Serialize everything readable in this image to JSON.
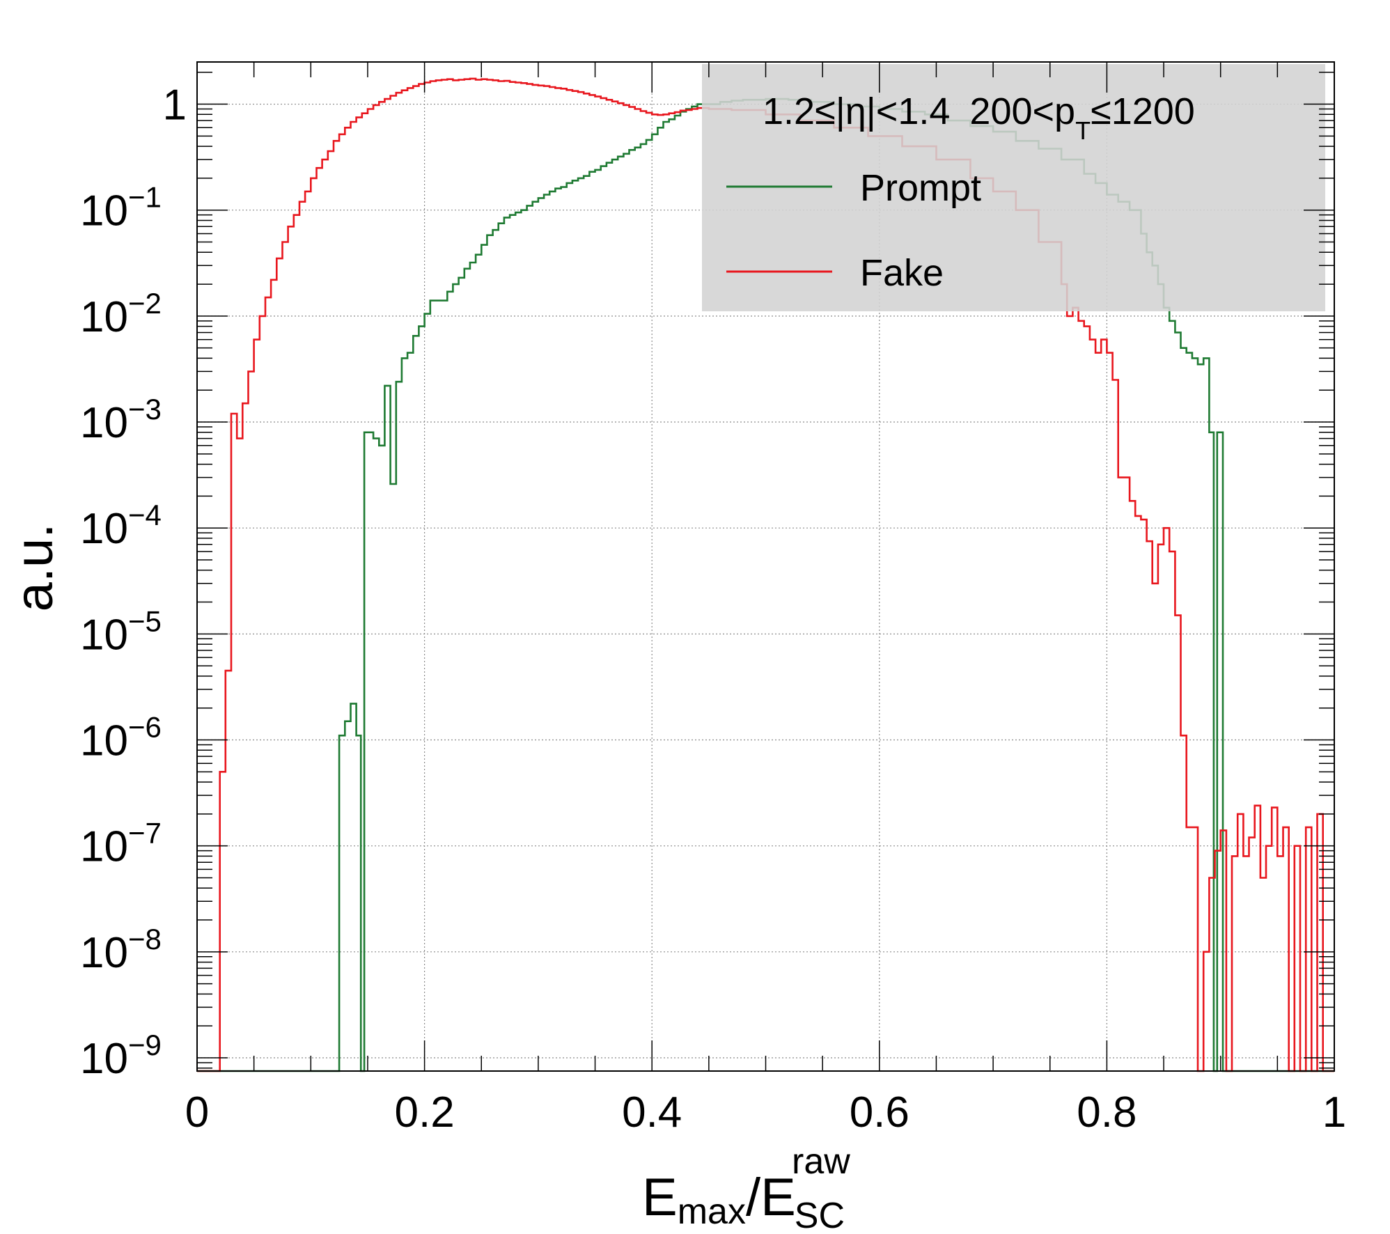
{
  "chart_data": {
    "type": "line",
    "step": true,
    "yscale": "log",
    "xlim": [
      0,
      1
    ],
    "ylim": [
      7.5e-10,
      2.5
    ],
    "grid": true,
    "xlabel": {
      "main": "E",
      "sub": "max",
      "sep": "/",
      "main2": "E",
      "sub2": "SC",
      "sup2": "raw"
    },
    "ylabel": "a.u.",
    "x_ticks": [
      {
        "value": 0,
        "label": "0"
      },
      {
        "value": 0.2,
        "label": "0.2"
      },
      {
        "value": 0.4,
        "label": "0.4"
      },
      {
        "value": 0.6,
        "label": "0.6"
      },
      {
        "value": 0.8,
        "label": "0.8"
      },
      {
        "value": 1,
        "label": "1"
      }
    ],
    "y_ticks": [
      {
        "value": 1,
        "base": "1",
        "exp": ""
      },
      {
        "value": 0.1,
        "base": "10",
        "exp": "−1"
      },
      {
        "value": 0.01,
        "base": "10",
        "exp": "−2"
      },
      {
        "value": 0.001,
        "base": "10",
        "exp": "−3"
      },
      {
        "value": 0.0001,
        "base": "10",
        "exp": "−4"
      },
      {
        "value": 1e-05,
        "base": "10",
        "exp": "−5"
      },
      {
        "value": 1e-06,
        "base": "10",
        "exp": "−6"
      },
      {
        "value": 1e-07,
        "base": "10",
        "exp": "−7"
      },
      {
        "value": 1e-08,
        "base": "10",
        "exp": "−8"
      },
      {
        "value": 1e-09,
        "base": "10",
        "exp": "−9"
      }
    ],
    "legend": {
      "position": "top-right",
      "header": {
        "left": "1.2≤|η|<1.4",
        "mid": "200<p",
        "sub": "T",
        "right": "≤1200"
      }
    },
    "series": [
      {
        "name": "Prompt",
        "color": "#1e7a32",
        "points": [
          [
            0.0,
            0
          ],
          [
            0.125,
            0
          ],
          [
            0.125,
            1.1e-06
          ],
          [
            0.13,
            1.5e-06
          ],
          [
            0.135,
            2.2e-06
          ],
          [
            0.14,
            1.1e-06
          ],
          [
            0.144,
            0
          ],
          [
            0.147,
            0.0008
          ],
          [
            0.155,
            0.0007
          ],
          [
            0.16,
            0.0006
          ],
          [
            0.165,
            0.0022
          ],
          [
            0.17,
            0.00026
          ],
          [
            0.175,
            0.0024
          ],
          [
            0.18,
            0.004
          ],
          [
            0.185,
            0.0045
          ],
          [
            0.19,
            0.0065
          ],
          [
            0.195,
            0.008
          ],
          [
            0.2,
            0.0105
          ],
          [
            0.205,
            0.014
          ],
          [
            0.21,
            0.014
          ],
          [
            0.215,
            0.014
          ],
          [
            0.22,
            0.017
          ],
          [
            0.225,
            0.02
          ],
          [
            0.23,
            0.023
          ],
          [
            0.235,
            0.028
          ],
          [
            0.24,
            0.032
          ],
          [
            0.245,
            0.038
          ],
          [
            0.25,
            0.047
          ],
          [
            0.255,
            0.058
          ],
          [
            0.26,
            0.065
          ],
          [
            0.265,
            0.075
          ],
          [
            0.27,
            0.085
          ],
          [
            0.275,
            0.09
          ],
          [
            0.28,
            0.095
          ],
          [
            0.285,
            0.1
          ],
          [
            0.29,
            0.11
          ],
          [
            0.295,
            0.12
          ],
          [
            0.3,
            0.13
          ],
          [
            0.305,
            0.14
          ],
          [
            0.31,
            0.15
          ],
          [
            0.315,
            0.16
          ],
          [
            0.32,
            0.165
          ],
          [
            0.325,
            0.18
          ],
          [
            0.33,
            0.19
          ],
          [
            0.335,
            0.2
          ],
          [
            0.34,
            0.21
          ],
          [
            0.345,
            0.23
          ],
          [
            0.35,
            0.24
          ],
          [
            0.355,
            0.26
          ],
          [
            0.36,
            0.28
          ],
          [
            0.365,
            0.3
          ],
          [
            0.37,
            0.32
          ],
          [
            0.375,
            0.34
          ],
          [
            0.38,
            0.37
          ],
          [
            0.385,
            0.39
          ],
          [
            0.39,
            0.42
          ],
          [
            0.395,
            0.46
          ],
          [
            0.4,
            0.52
          ],
          [
            0.405,
            0.6
          ],
          [
            0.41,
            0.68
          ],
          [
            0.415,
            0.72
          ],
          [
            0.42,
            0.78
          ],
          [
            0.425,
            0.85
          ],
          [
            0.43,
            0.9
          ],
          [
            0.435,
            0.95
          ],
          [
            0.44,
            1.0
          ],
          [
            0.45,
            1.0
          ],
          [
            0.46,
            1.05
          ],
          [
            0.47,
            1.08
          ],
          [
            0.48,
            1.1
          ],
          [
            0.5,
            1.12
          ],
          [
            0.52,
            1.1
          ],
          [
            0.54,
            1.05
          ],
          [
            0.56,
            1.0
          ],
          [
            0.58,
            0.95
          ],
          [
            0.6,
            0.9
          ],
          [
            0.62,
            0.85
          ],
          [
            0.64,
            0.8
          ],
          [
            0.66,
            0.7
          ],
          [
            0.68,
            0.62
          ],
          [
            0.7,
            0.55
          ],
          [
            0.72,
            0.45
          ],
          [
            0.74,
            0.38
          ],
          [
            0.76,
            0.3
          ],
          [
            0.78,
            0.22
          ],
          [
            0.79,
            0.18
          ],
          [
            0.8,
            0.14
          ],
          [
            0.81,
            0.12
          ],
          [
            0.82,
            0.1
          ],
          [
            0.825,
            0.1
          ],
          [
            0.83,
            0.06
          ],
          [
            0.835,
            0.04
          ],
          [
            0.84,
            0.03
          ],
          [
            0.845,
            0.02
          ],
          [
            0.85,
            0.012
          ],
          [
            0.855,
            0.009
          ],
          [
            0.86,
            0.007
          ],
          [
            0.865,
            0.005
          ],
          [
            0.87,
            0.0045
          ],
          [
            0.875,
            0.004
          ],
          [
            0.88,
            0.0035
          ],
          [
            0.885,
            0.004
          ],
          [
            0.89,
            0.0008
          ],
          [
            0.894,
            0
          ],
          [
            0.897,
            0.0008
          ],
          [
            0.902,
            0
          ],
          [
            1.0,
            0
          ]
        ]
      },
      {
        "name": "Fake",
        "color": "#e8161d",
        "points": [
          [
            0.0,
            0
          ],
          [
            0.02,
            0
          ],
          [
            0.02,
            5e-07
          ],
          [
            0.025,
            4.5e-06
          ],
          [
            0.03,
            0.0012
          ],
          [
            0.035,
            0.0007
          ],
          [
            0.04,
            0.0015
          ],
          [
            0.045,
            0.003
          ],
          [
            0.05,
            0.006
          ],
          [
            0.055,
            0.01
          ],
          [
            0.06,
            0.015
          ],
          [
            0.065,
            0.022
          ],
          [
            0.07,
            0.035
          ],
          [
            0.075,
            0.05
          ],
          [
            0.08,
            0.07
          ],
          [
            0.085,
            0.09
          ],
          [
            0.09,
            0.12
          ],
          [
            0.095,
            0.15
          ],
          [
            0.1,
            0.2
          ],
          [
            0.105,
            0.25
          ],
          [
            0.11,
            0.3
          ],
          [
            0.115,
            0.36
          ],
          [
            0.12,
            0.45
          ],
          [
            0.125,
            0.52
          ],
          [
            0.13,
            0.6
          ],
          [
            0.135,
            0.68
          ],
          [
            0.14,
            0.75
          ],
          [
            0.145,
            0.82
          ],
          [
            0.15,
            0.9
          ],
          [
            0.155,
            0.98
          ],
          [
            0.16,
            1.05
          ],
          [
            0.165,
            1.12
          ],
          [
            0.17,
            1.2
          ],
          [
            0.175,
            1.28
          ],
          [
            0.18,
            1.35
          ],
          [
            0.185,
            1.42
          ],
          [
            0.19,
            1.48
          ],
          [
            0.195,
            1.55
          ],
          [
            0.2,
            1.6
          ],
          [
            0.205,
            1.65
          ],
          [
            0.21,
            1.68
          ],
          [
            0.215,
            1.7
          ],
          [
            0.22,
            1.72
          ],
          [
            0.225,
            1.68
          ],
          [
            0.23,
            1.7
          ],
          [
            0.235,
            1.72
          ],
          [
            0.24,
            1.74
          ],
          [
            0.245,
            1.7
          ],
          [
            0.25,
            1.72
          ],
          [
            0.255,
            1.7
          ],
          [
            0.26,
            1.68
          ],
          [
            0.265,
            1.65
          ],
          [
            0.27,
            1.66
          ],
          [
            0.275,
            1.62
          ],
          [
            0.28,
            1.6
          ],
          [
            0.285,
            1.58
          ],
          [
            0.29,
            1.55
          ],
          [
            0.295,
            1.52
          ],
          [
            0.3,
            1.5
          ],
          [
            0.305,
            1.48
          ],
          [
            0.31,
            1.45
          ],
          [
            0.315,
            1.42
          ],
          [
            0.32,
            1.4
          ],
          [
            0.325,
            1.36
          ],
          [
            0.33,
            1.33
          ],
          [
            0.335,
            1.3
          ],
          [
            0.34,
            1.26
          ],
          [
            0.345,
            1.22
          ],
          [
            0.35,
            1.18
          ],
          [
            0.355,
            1.14
          ],
          [
            0.36,
            1.1
          ],
          [
            0.365,
            1.06
          ],
          [
            0.37,
            1.02
          ],
          [
            0.375,
            0.98
          ],
          [
            0.38,
            0.94
          ],
          [
            0.385,
            0.9
          ],
          [
            0.39,
            0.86
          ],
          [
            0.395,
            0.83
          ],
          [
            0.4,
            0.8
          ],
          [
            0.405,
            0.79
          ],
          [
            0.41,
            0.8
          ],
          [
            0.415,
            0.82
          ],
          [
            0.42,
            0.84
          ],
          [
            0.425,
            0.87
          ],
          [
            0.43,
            0.88
          ],
          [
            0.435,
            0.9
          ],
          [
            0.44,
            0.92
          ],
          [
            0.45,
            0.9
          ],
          [
            0.47,
            0.88
          ],
          [
            0.5,
            0.8
          ],
          [
            0.53,
            0.7
          ],
          [
            0.56,
            0.6
          ],
          [
            0.59,
            0.5
          ],
          [
            0.62,
            0.4
          ],
          [
            0.65,
            0.3
          ],
          [
            0.68,
            0.2
          ],
          [
            0.7,
            0.15
          ],
          [
            0.72,
            0.1
          ],
          [
            0.74,
            0.05
          ],
          [
            0.76,
            0.02
          ],
          [
            0.765,
            0.01
          ],
          [
            0.77,
            0.012
          ],
          [
            0.775,
            0.009
          ],
          [
            0.78,
            0.008
          ],
          [
            0.785,
            0.006
          ],
          [
            0.79,
            0.0045
          ],
          [
            0.795,
            0.006
          ],
          [
            0.8,
            0.0045
          ],
          [
            0.805,
            0.0025
          ],
          [
            0.81,
            0.0003
          ],
          [
            0.815,
            0.0003
          ],
          [
            0.82,
            0.00018
          ],
          [
            0.825,
            0.00013
          ],
          [
            0.83,
            0.00012
          ],
          [
            0.835,
            7.5e-05
          ],
          [
            0.84,
            3e-05
          ],
          [
            0.845,
            7e-05
          ],
          [
            0.85,
            0.0001
          ],
          [
            0.855,
            6e-05
          ],
          [
            0.86,
            1.5e-05
          ],
          [
            0.865,
            1.1e-06
          ],
          [
            0.87,
            1.5e-07
          ],
          [
            0.875,
            1.5e-07
          ],
          [
            0.88,
            0
          ],
          [
            0.885,
            1e-08
          ],
          [
            0.89,
            5e-08
          ],
          [
            0.895,
            9e-08
          ],
          [
            0.9,
            1.4e-07
          ],
          [
            0.905,
            0
          ],
          [
            0.91,
            8e-08
          ],
          [
            0.915,
            2e-07
          ],
          [
            0.92,
            8e-08
          ],
          [
            0.925,
            1.2e-07
          ],
          [
            0.93,
            2.4e-07
          ],
          [
            0.935,
            5e-08
          ],
          [
            0.94,
            1e-07
          ],
          [
            0.945,
            2.3e-07
          ],
          [
            0.95,
            8e-08
          ],
          [
            0.955,
            1.5e-07
          ],
          [
            0.96,
            0
          ],
          [
            0.965,
            1e-07
          ],
          [
            0.97,
            0
          ],
          [
            0.975,
            1.5e-07
          ],
          [
            0.98,
            0
          ],
          [
            0.985,
            2e-07
          ],
          [
            0.99,
            0
          ],
          [
            1.0,
            0
          ]
        ]
      }
    ]
  }
}
